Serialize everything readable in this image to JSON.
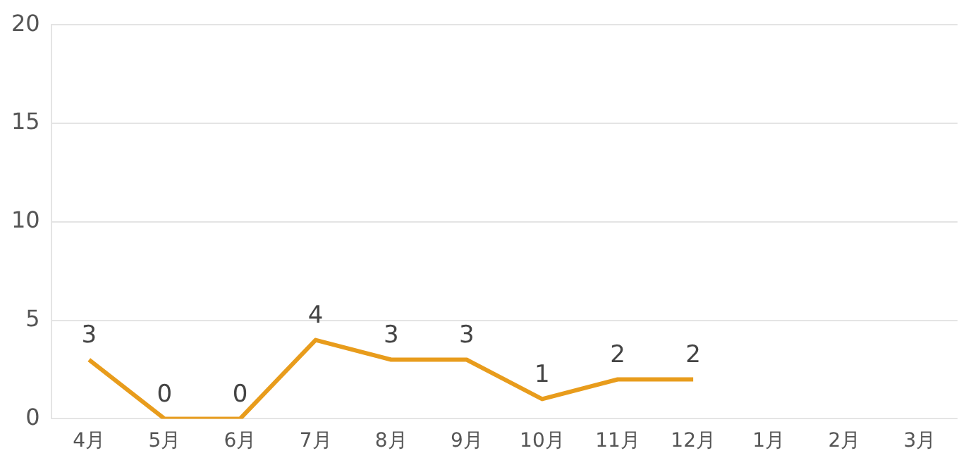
{
  "chart_data": {
    "type": "line",
    "categories": [
      "4月",
      "5月",
      "6月",
      "7月",
      "8月",
      "9月",
      "10月",
      "11月",
      "12月",
      "1月",
      "2月",
      "3月"
    ],
    "series": [
      {
        "color": "#e89c1c",
        "values": [
          3,
          0,
          0,
          4,
          3,
          3,
          1,
          2,
          2,
          null,
          null,
          null
        ]
      }
    ],
    "ylim": [
      0,
      20
    ],
    "yticks": [
      0,
      5,
      10,
      15,
      20
    ],
    "grid": "y",
    "legend": false,
    "marker": "none",
    "line_style": "solid",
    "data_labels": true
  }
}
